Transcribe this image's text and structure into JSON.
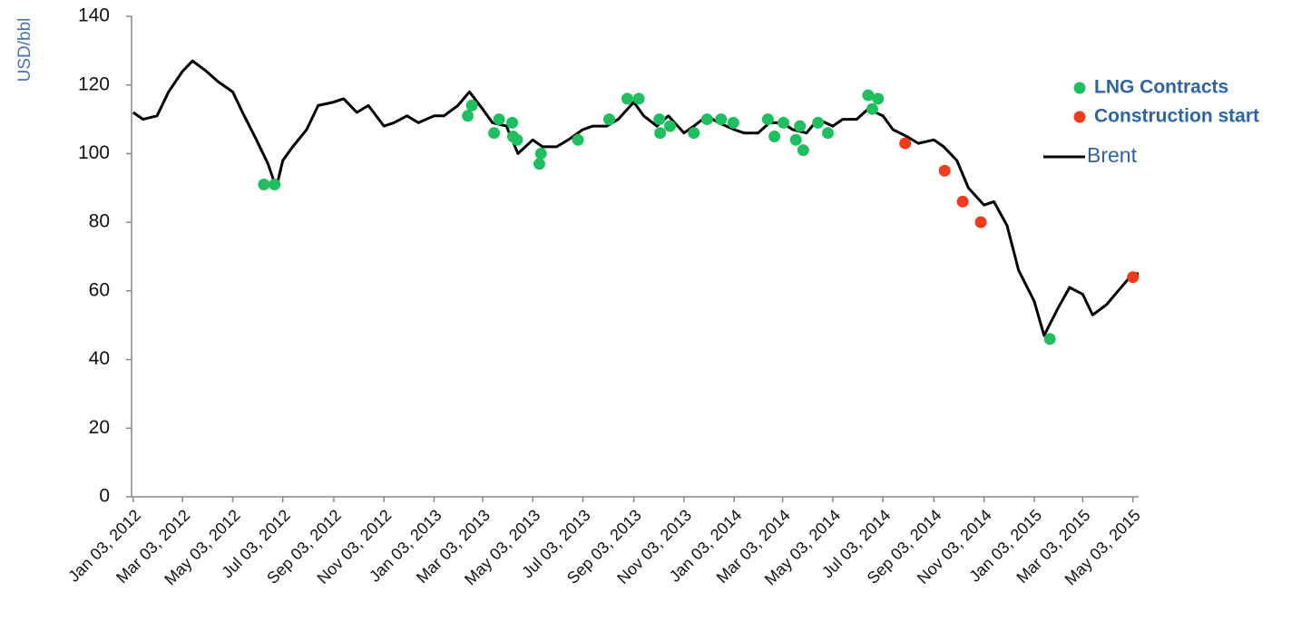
{
  "chart_data": {
    "type": "line",
    "y_label": "USD/bbl",
    "ylim": [
      0,
      140
    ],
    "yticks": [
      0,
      20,
      40,
      60,
      80,
      100,
      120,
      140
    ],
    "xlim": [
      "2012-01-01",
      "2015-05-10"
    ],
    "xticks": [
      {
        "value": "2012-01-03",
        "label": "Jan 03, 2012"
      },
      {
        "value": "2012-03-03",
        "label": "Mar 03, 2012"
      },
      {
        "value": "2012-05-03",
        "label": "May 03, 2012"
      },
      {
        "value": "2012-07-03",
        "label": "Jul 03, 2012"
      },
      {
        "value": "2012-09-03",
        "label": "Sep 03, 2012"
      },
      {
        "value": "2012-11-03",
        "label": "Nov 03, 2012"
      },
      {
        "value": "2013-01-03",
        "label": "Jan 03, 2013"
      },
      {
        "value": "2013-03-03",
        "label": "Mar 03, 2013"
      },
      {
        "value": "2013-05-03",
        "label": "May 03, 2013"
      },
      {
        "value": "2013-07-03",
        "label": "Jul 03, 2013"
      },
      {
        "value": "2013-09-03",
        "label": "Sep 03, 2013"
      },
      {
        "value": "2013-11-03",
        "label": "Nov 03, 2013"
      },
      {
        "value": "2014-01-03",
        "label": "Jan 03, 2014"
      },
      {
        "value": "2014-03-03",
        "label": "Mar 03, 2014"
      },
      {
        "value": "2014-05-03",
        "label": "May 03, 2014"
      },
      {
        "value": "2014-07-03",
        "label": "Jul 03, 2014"
      },
      {
        "value": "2014-09-03",
        "label": "Sep 03, 2014"
      },
      {
        "value": "2014-11-03",
        "label": "Nov 03, 2014"
      },
      {
        "value": "2015-01-03",
        "label": "Jan 03, 2015"
      },
      {
        "value": "2015-03-03",
        "label": "Mar 03, 2015"
      },
      {
        "value": "2015-05-03",
        "label": "May 03, 2015"
      }
    ],
    "series": [
      {
        "name": "LNG Contracts",
        "mark": "point",
        "color": "#1fbf5f",
        "x": [
          "2012-06-10",
          "2012-06-23",
          "2013-02-13",
          "2013-02-18",
          "2013-03-17",
          "2013-03-23",
          "2013-04-08",
          "2013-04-09",
          "2013-04-14",
          "2013-05-11",
          "2013-05-13",
          "2013-06-27",
          "2013-08-04",
          "2013-08-26",
          "2013-09-09",
          "2013-10-04",
          "2013-10-05",
          "2013-10-17",
          "2013-11-15",
          "2013-12-01",
          "2013-12-18",
          "2014-01-02",
          "2014-02-13",
          "2014-02-21",
          "2014-03-04",
          "2014-03-19",
          "2014-03-24",
          "2014-03-28",
          "2014-04-15",
          "2014-04-27",
          "2014-06-15",
          "2014-06-20",
          "2014-06-27",
          "2015-01-22"
        ],
        "values": [
          91,
          91,
          111,
          114,
          106,
          110,
          109,
          105,
          104,
          97,
          100,
          104,
          110,
          116,
          116,
          110,
          106,
          108,
          106,
          110,
          110,
          109,
          110,
          105,
          109,
          104,
          108,
          101,
          109,
          106,
          117,
          113,
          116,
          46
        ]
      },
      {
        "name": "Construction start",
        "mark": "point",
        "color": "#f03c1c",
        "x": [
          "2014-07-30",
          "2014-09-16",
          "2014-10-08",
          "2014-10-30",
          "2015-05-03"
        ],
        "values": [
          103,
          95,
          86,
          80,
          64
        ]
      },
      {
        "name": "Brent",
        "mark": "line",
        "color": "#000000",
        "x": [
          "2012-01-03",
          "2012-01-15",
          "2012-02-01",
          "2012-02-15",
          "2012-03-03",
          "2012-03-15",
          "2012-04-01",
          "2012-04-15",
          "2012-05-03",
          "2012-05-15",
          "2012-06-01",
          "2012-06-15",
          "2012-06-25",
          "2012-07-03",
          "2012-07-15",
          "2012-08-01",
          "2012-08-15",
          "2012-09-03",
          "2012-09-15",
          "2012-10-01",
          "2012-10-15",
          "2012-11-03",
          "2012-11-15",
          "2012-12-01",
          "2012-12-15",
          "2013-01-03",
          "2013-01-15",
          "2013-02-01",
          "2013-02-15",
          "2013-03-03",
          "2013-03-15",
          "2013-04-01",
          "2013-04-15",
          "2013-05-03",
          "2013-05-15",
          "2013-06-01",
          "2013-06-15",
          "2013-07-03",
          "2013-07-15",
          "2013-08-01",
          "2013-08-15",
          "2013-09-03",
          "2013-09-15",
          "2013-10-01",
          "2013-10-15",
          "2013-11-03",
          "2013-11-15",
          "2013-12-01",
          "2013-12-15",
          "2014-01-03",
          "2014-01-15",
          "2014-02-01",
          "2014-02-15",
          "2014-03-03",
          "2014-03-15",
          "2014-04-01",
          "2014-04-15",
          "2014-05-03",
          "2014-05-15",
          "2014-06-01",
          "2014-06-15",
          "2014-07-03",
          "2014-07-15",
          "2014-08-01",
          "2014-08-15",
          "2014-09-03",
          "2014-09-15",
          "2014-10-01",
          "2014-10-15",
          "2014-11-03",
          "2014-11-15",
          "2014-12-01",
          "2014-12-15",
          "2015-01-03",
          "2015-01-15",
          "2015-02-01",
          "2015-02-15",
          "2015-03-03",
          "2015-03-15",
          "2015-04-01",
          "2015-04-15",
          "2015-05-03",
          "2015-05-10"
        ],
        "values": [
          112,
          110,
          111,
          118,
          124,
          127,
          124,
          121,
          118,
          112,
          104,
          97,
          90,
          98,
          102,
          107,
          114,
          115,
          116,
          112,
          114,
          108,
          109,
          111,
          109,
          111,
          111,
          114,
          118,
          113,
          109,
          108,
          100,
          104,
          102,
          102,
          104,
          107,
          108,
          108,
          110,
          115,
          111,
          108,
          111,
          106,
          108,
          111,
          109,
          107,
          106,
          106,
          109,
          109,
          107,
          106,
          110,
          108,
          110,
          110,
          113,
          111,
          107,
          105,
          103,
          104,
          102,
          98,
          90,
          85,
          86,
          79,
          66,
          57,
          47,
          55,
          61,
          59,
          53,
          56,
          60,
          65,
          65
        ]
      }
    ]
  }
}
